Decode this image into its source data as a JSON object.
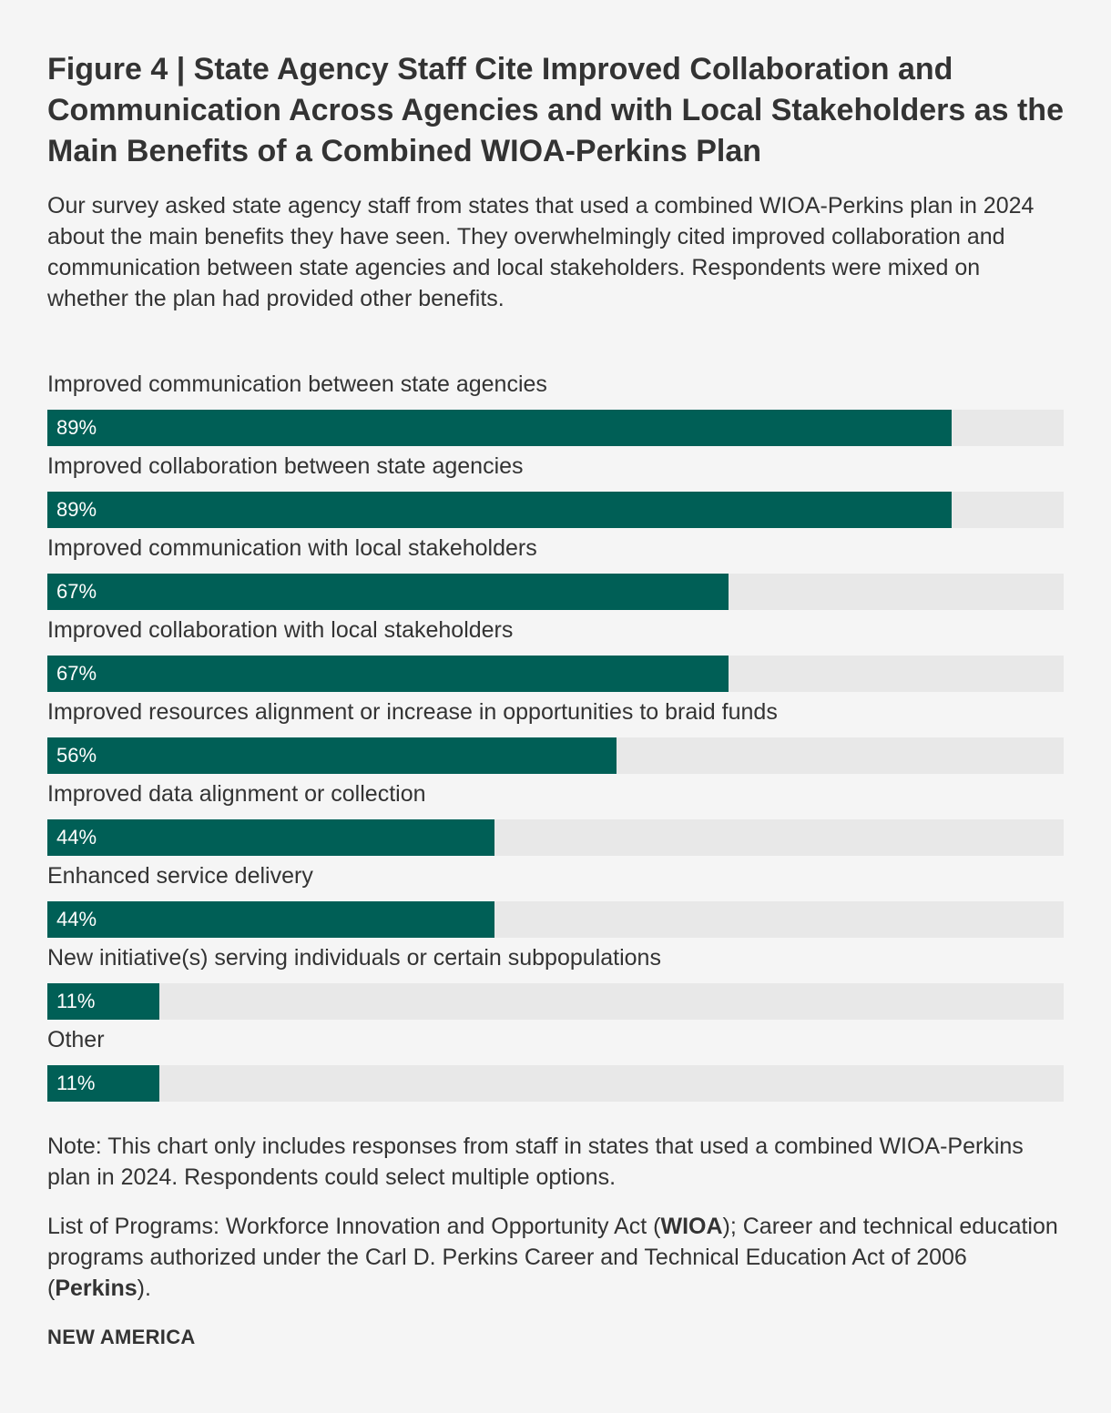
{
  "title": "Figure 4 | State Agency Staff Cite Improved Collaboration and Communication Across Agencies and with Local Stakeholders as the Main Benefits of a Combined WIOA-Perkins Plan",
  "subtitle": "Our survey asked state agency staff from states that used a combined WIOA-Perkins plan in 2024 about the main benefits they have seen. They overwhelmingly cited improved collaboration and communication between state agencies and local stakeholders. Respondents were mixed on whether the plan had provided other benefits.",
  "chart_data": {
    "type": "bar",
    "orientation": "horizontal",
    "categories": [
      "Improved communication between state agencies",
      "Improved collaboration between state agencies",
      "Improved communication with local stakeholders",
      "Improved collaboration with local stakeholders",
      "Improved resources alignment or increase in opportunities to braid funds",
      "Improved data alignment or collection",
      "Enhanced service delivery",
      "New initiative(s) serving individuals or certain subpopulations",
      "Other"
    ],
    "values": [
      89,
      89,
      67,
      67,
      56,
      44,
      44,
      11,
      11
    ],
    "value_labels": [
      "89%",
      "89%",
      "67%",
      "67%",
      "56%",
      "44%",
      "44%",
      "11%",
      "11%"
    ],
    "xlim": [
      0,
      100
    ],
    "bar_color": "#005f56",
    "track_color": "#e8e8e8",
    "grid": false
  },
  "notes": {
    "note": "Note: This chart only includes responses from staff in states that used a combined WIOA-Perkins plan in 2024. Respondents could select multiple options.",
    "programs_prefix": "List of Programs: Workforce Innovation and Opportunity Act (",
    "programs_bold_1": "WIOA",
    "programs_middle": "); Career and technical education programs authorized under the Carl D. Perkins Career and Technical Education Act of 2006 (",
    "programs_bold_2": "Perkins",
    "programs_suffix": ")."
  },
  "brand": "NEW AMERICA"
}
